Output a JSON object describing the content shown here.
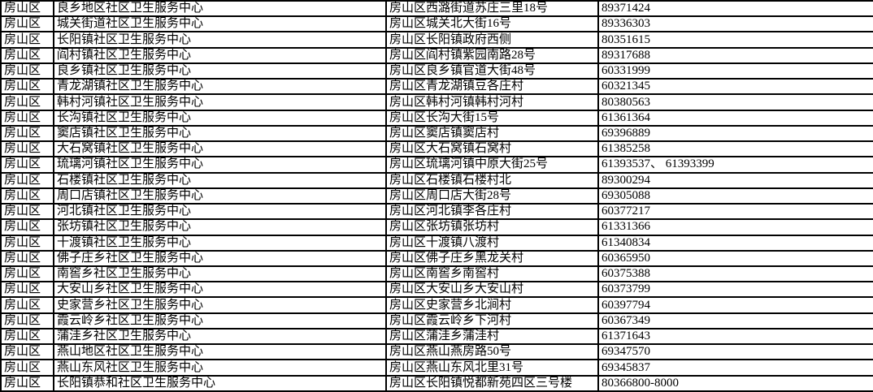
{
  "colors": {
    "background": "#ffffff",
    "border": "#000000",
    "text": "#000000"
  },
  "table": {
    "rows": [
      {
        "district": "房山区",
        "name": "良乡地区社区卫生服务中心",
        "address": "房山区西潞街道苏庄三里18号",
        "phone": "89371424"
      },
      {
        "district": "房山区",
        "name": "城关街道社区卫生服务中心",
        "address": "房山区城关北大街16号",
        "phone": "89336303"
      },
      {
        "district": "房山区",
        "name": "长阳镇社区卫生服务中心",
        "address": "房山区长阳镇政府西侧",
        "phone": "80351615"
      },
      {
        "district": "房山区",
        "name": "阎村镇社区卫生服务中心",
        "address": "房山区阎村镇紫园南路28号",
        "phone": "89317688"
      },
      {
        "district": "房山区",
        "name": "良乡镇社区卫生服务中心",
        "address": "房山区良乡镇官道大街48号",
        "phone": "60331999"
      },
      {
        "district": "房山区",
        "name": "青龙湖镇社区卫生服务中心",
        "address": "房山区青龙湖镇豆各庄村",
        "phone": "60321345"
      },
      {
        "district": "房山区",
        "name": "韩村河镇社区卫生服务中心",
        "address": "房山区韩村河镇韩村河村",
        "phone": "80380563"
      },
      {
        "district": "房山区",
        "name": "长沟镇社区卫生服务中心",
        "address": "房山区长沟大街15号",
        "phone": "61361364"
      },
      {
        "district": "房山区",
        "name": "窦店镇社区卫生服务中心",
        "address": "房山区窦店镇窦店村",
        "phone": "69396889"
      },
      {
        "district": "房山区",
        "name": "大石窝镇社区卫生服务中心",
        "address": "房山区大石窝镇石窝村",
        "phone": "61385258"
      },
      {
        "district": "房山区",
        "name": "琉璃河镇社区卫生服务中心",
        "address": "房山区琉璃河镇中原大街25号",
        "phone": "61393537、 61393399"
      },
      {
        "district": "房山区",
        "name": "石楼镇社区卫生服务中心",
        "address": "房山区石楼镇石楼村北",
        "phone": "89300294"
      },
      {
        "district": "房山区",
        "name": "周口店镇社区卫生服务中心",
        "address": "房山区周口店大街28号",
        "phone": "69305088"
      },
      {
        "district": "房山区",
        "name": "河北镇社区卫生服务中心",
        "address": "房山区河北镇李各庄村",
        "phone": "60377217"
      },
      {
        "district": "房山区",
        "name": "张坊镇社区卫生服务中心",
        "address": "房山区张坊镇张坊村",
        "phone": "61331366"
      },
      {
        "district": "房山区",
        "name": "十渡镇社区卫生服务中心",
        "address": "房山区十渡镇八渡村",
        "phone": "61340834"
      },
      {
        "district": "房山区",
        "name": "佛子庄乡社区卫生服务中心",
        "address": "房山区佛子庄乡黑龙关村",
        "phone": "60365950"
      },
      {
        "district": "房山区",
        "name": "南窖乡社区卫生服务中心",
        "address": "房山区南窖乡南窖村",
        "phone": "60375388"
      },
      {
        "district": "房山区",
        "name": "大安山乡社区卫生服务中心",
        "address": "房山区大安山乡大安山村",
        "phone": "60373799"
      },
      {
        "district": "房山区",
        "name": "史家营乡社区卫生服务中心",
        "address": "房山区史家营乡北涧村",
        "phone": "60397794"
      },
      {
        "district": "房山区",
        "name": "霞云岭乡社区卫生服务中心",
        "address": "房山区霞云岭乡下河村",
        "phone": "60367349"
      },
      {
        "district": "房山区",
        "name": "蒲洼乡社区卫生服务中心",
        "address": "房山区蒲洼乡蒲洼村",
        "phone": "61371643"
      },
      {
        "district": "房山区",
        "name": "燕山地区社区卫生服务中心",
        "address": "房山区燕山燕房路50号",
        "phone": "69347570"
      },
      {
        "district": "房山区",
        "name": "燕山东风社区卫生服务中心",
        "address": "房山区燕山东风北里31号",
        "phone": "69345837"
      },
      {
        "district": "房山区",
        "name": "长阳镇恭和社区卫生服务中心",
        "address": "房山区长阳镇悦都新苑四区三号楼",
        "phone": "80366800-8000"
      }
    ]
  }
}
